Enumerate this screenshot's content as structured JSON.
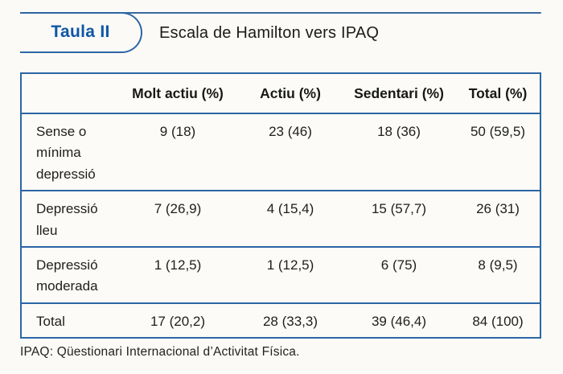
{
  "header": {
    "badge_label": "Taula II",
    "title": "Escala de Hamilton vers IPAQ"
  },
  "table": {
    "columns": [
      "",
      "Molt actiu (%)",
      "Actiu (%)",
      "Sedentari (%)",
      "Total (%)"
    ],
    "rows": [
      {
        "label": "Sense o mínima depressió",
        "values": [
          "9 (18)",
          "23 (46)",
          "18 (36)",
          "50 (59,5)"
        ]
      },
      {
        "label": "Depressió lleu",
        "values": [
          "7 (26,9)",
          "4 (15,4)",
          "15 (57,7)",
          "26 (31)"
        ]
      },
      {
        "label": "Depressió moderada",
        "values": [
          "1 (12,5)",
          "1 (12,5)",
          "6 (75)",
          "8 (9,5)"
        ]
      },
      {
        "label": "Total",
        "values": [
          "17 (20,2)",
          "28 (33,3)",
          "39 (46,4)",
          "84 (100)"
        ]
      }
    ]
  },
  "footnote": "IPAQ: Qüestionari Internacional d’Activitat Física.",
  "colors": {
    "accent_blue_text": "#0e56a7",
    "line_blue": "#2c66a6",
    "background": "#fbfaf6",
    "text": "#1e1e1c"
  }
}
